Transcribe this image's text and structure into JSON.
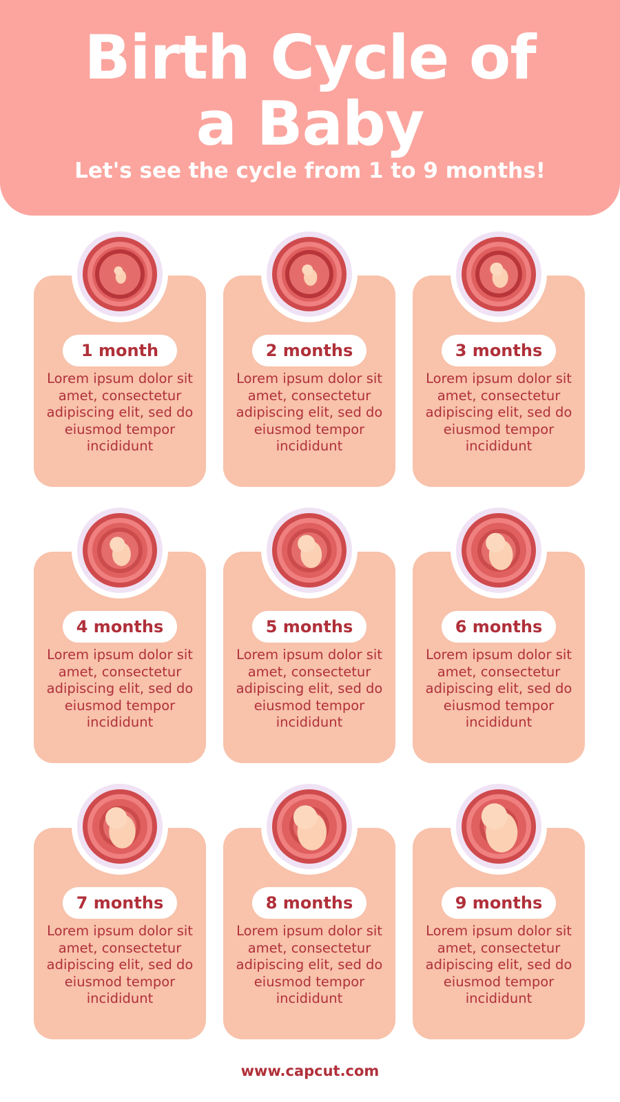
{
  "header": {
    "title": "Birth Cycle of a Baby",
    "subtitle": "Let's see the cycle from 1 to 9 months!"
  },
  "stages": [
    {
      "label": "1 month",
      "text": "Lorem ipsum dolor sit amet, consectetur adipiscing elit, sed do eiusmod tempor incididunt"
    },
    {
      "label": "2 months",
      "text": "Lorem ipsum dolor sit amet, consectetur adipiscing elit, sed do eiusmod tempor incididunt"
    },
    {
      "label": "3 months",
      "text": "Lorem ipsum dolor sit amet, consectetur adipiscing elit, sed do eiusmod tempor incididunt"
    },
    {
      "label": "4 months",
      "text": "Lorem ipsum dolor sit amet, consectetur adipiscing elit, sed do eiusmod tempor incididunt"
    },
    {
      "label": "5 months",
      "text": "Lorem ipsum dolor sit amet, consectetur adipiscing elit, sed do eiusmod tempor incididunt"
    },
    {
      "label": "6 months",
      "text": "Lorem ipsum dolor sit amet, consectetur adipiscing elit, sed do eiusmod tempor incididunt"
    },
    {
      "label": "7 months",
      "text": "Lorem ipsum dolor sit amet, consectetur adipiscing elit, sed do eiusmod tempor incididunt"
    },
    {
      "label": "8 months",
      "text": "Lorem ipsum dolor sit amet, consectetur adipiscing elit, sed do eiusmod tempor incididunt"
    },
    {
      "label": "9 months",
      "text": "Lorem ipsum dolor sit amet, consectetur adipiscing elit, sed do eiusmod tempor incididunt"
    }
  ],
  "footer": {
    "url": "www.capcut.com"
  },
  "colors": {
    "header": "#fba59e",
    "card": "#f8c2ab",
    "text": "#b0303a",
    "ring": "#f0e2f5"
  }
}
